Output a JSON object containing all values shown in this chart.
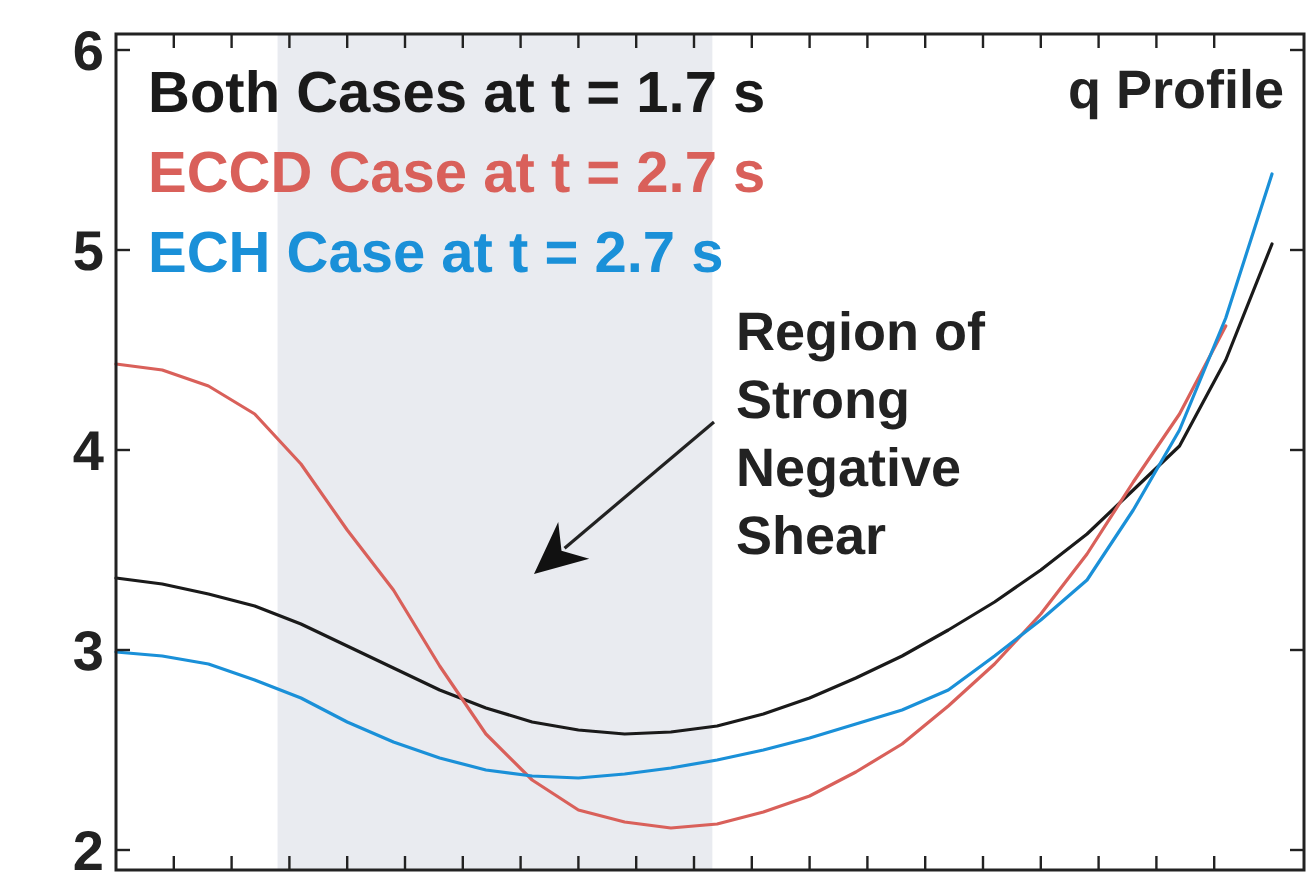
{
  "chart_data": {
    "type": "line",
    "title": "q Profile",
    "categories": [
      null,
      null,
      null,
      null,
      null,
      null,
      null,
      null,
      null,
      null,
      null,
      null,
      null,
      null,
      null,
      null,
      null,
      null,
      null,
      null,
      null,
      null,
      null,
      null,
      null,
      null
    ],
    "ylim": [
      1.9,
      6.08
    ],
    "yticks": [
      2,
      3,
      4,
      5,
      6
    ],
    "grid": false,
    "legend": "top left",
    "marker": "none",
    "line_style": "solid",
    "annotations": [
      "Region of\nStrong\nNegative\nShear"
    ],
    "series": [
      {
        "name": "Both Cases at t = 1.7 s",
        "color": "#1a1a1a",
        "values": [
          3.36,
          3.33,
          3.28,
          3.22,
          3.13,
          3.02,
          2.91,
          2.8,
          2.71,
          2.64,
          2.6,
          2.58,
          2.59,
          2.62,
          2.68,
          2.76,
          2.86,
          2.97,
          3.1,
          3.24,
          3.4,
          3.58,
          3.8,
          4.02,
          4.45,
          5.03
        ]
      },
      {
        "name": "ECCD Case at t = 2.7 s",
        "color": "#d9605a",
        "values": [
          4.43,
          4.4,
          4.32,
          4.18,
          3.93,
          3.6,
          3.3,
          2.92,
          2.58,
          2.35,
          2.2,
          2.14,
          2.11,
          2.13,
          2.19,
          2.27,
          2.39,
          2.53,
          2.72,
          2.93,
          3.18,
          3.48,
          3.84,
          4.18,
          4.62,
          null
        ]
      },
      {
        "name": "ECH Case at t = 2.7 s",
        "color": "#1a90d8",
        "values": [
          2.99,
          2.97,
          2.93,
          2.85,
          2.76,
          2.64,
          2.54,
          2.46,
          2.4,
          2.37,
          2.36,
          2.38,
          2.41,
          2.45,
          2.5,
          2.56,
          2.63,
          2.7,
          2.8,
          2.97,
          3.15,
          3.35,
          3.7,
          4.1,
          4.66,
          5.38
        ]
      }
    ]
  }
}
